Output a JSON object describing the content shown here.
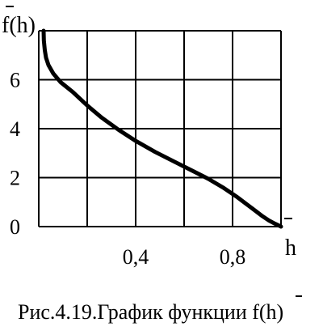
{
  "chart_data": {
    "type": "line",
    "ylabel": "f(h)",
    "xlabel": "h",
    "xlim": [
      0,
      1
    ],
    "ylim": [
      0,
      8
    ],
    "grid": true,
    "x_tick_values": [
      0.4,
      0.8
    ],
    "x_tick_labels": [
      "0,4",
      "0,8"
    ],
    "y_tick_values": [
      0,
      2,
      4,
      6
    ],
    "y_tick_labels": [
      "0",
      "2",
      "4",
      "6"
    ],
    "series": [
      {
        "x": [
          0.02,
          0.021,
          0.025,
          0.03,
          0.04,
          0.06,
          0.09,
          0.14,
          0.2,
          0.26,
          0.33,
          0.4,
          0.48,
          0.56,
          0.64,
          0.7,
          0.76,
          0.82,
          0.88,
          0.92,
          0.95,
          0.975,
          0.99,
          1.0
        ],
        "y": [
          8.0,
          7.6,
          7.2,
          6.9,
          6.6,
          6.25,
          5.9,
          5.5,
          4.95,
          4.45,
          3.95,
          3.5,
          3.05,
          2.65,
          2.25,
          1.95,
          1.6,
          1.2,
          0.75,
          0.45,
          0.25,
          0.12,
          0.05,
          0.0
        ]
      }
    ],
    "caption": "Рис.4.19.График функции f(h)"
  }
}
